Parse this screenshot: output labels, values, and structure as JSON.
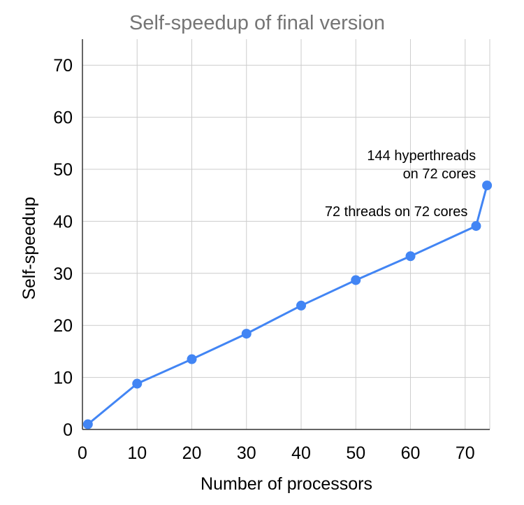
{
  "chart_data": {
    "type": "line",
    "title": "Self-speedup of final version",
    "xlabel": "Number of processors",
    "ylabel": "Self-speedup",
    "xlim": [
      0,
      74.5
    ],
    "ylim": [
      0,
      75
    ],
    "x_ticks": [
      0,
      10,
      20,
      30,
      40,
      50,
      60,
      70
    ],
    "y_ticks": [
      0,
      10,
      20,
      30,
      40,
      50,
      60,
      70
    ],
    "grid": true,
    "legend": "none",
    "series": [
      {
        "color": "#4285f4",
        "x": [
          1,
          10,
          20,
          30,
          40,
          50,
          60,
          72,
          74
        ],
        "y": [
          1,
          8.8,
          13.5,
          18.4,
          23.8,
          28.7,
          33.3,
          39.1,
          46.9
        ]
      }
    ],
    "annotations": [
      {
        "lines": [
          "72 threads on 72 cores"
        ],
        "x": 72,
        "y": 39.1
      },
      {
        "lines": [
          "144 hyperthreads",
          "on 72 cores"
        ],
        "x": 74,
        "y": 46.9
      }
    ]
  }
}
